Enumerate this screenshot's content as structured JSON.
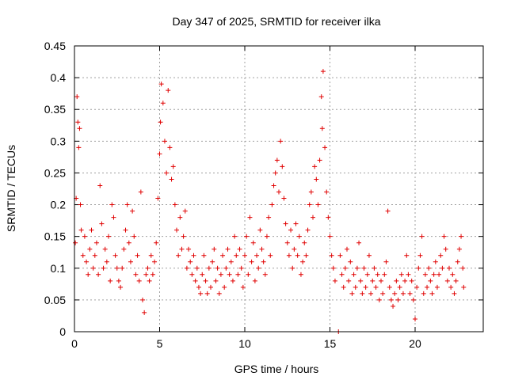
{
  "chart_data": {
    "type": "scatter",
    "title": "Day 347 of 2025, SRMTID for receiver ilka",
    "xlabel": "GPS time / hours",
    "ylabel": "SRMTID / TECUs",
    "xlim": [
      0,
      24
    ],
    "ylim": [
      0,
      0.45
    ],
    "xticks": [
      0,
      5,
      10,
      15,
      20
    ],
    "xtick_labels": [
      "0",
      "5",
      "10",
      "15",
      "20"
    ],
    "yticks": [
      0,
      0.05,
      0.1,
      0.15,
      0.2,
      0.25,
      0.3,
      0.35,
      0.4,
      0.45
    ],
    "ytick_labels": [
      "0",
      "0.05",
      "0.1",
      "0.15",
      "0.2",
      "0.25",
      "0.3",
      "0.35",
      "0.4",
      "0.45"
    ],
    "grid": true,
    "marker": "+",
    "series": [
      {
        "name": "SRMTID",
        "color": "#e00000",
        "points": [
          [
            0.05,
            0.14
          ],
          [
            0.1,
            0.21
          ],
          [
            0.15,
            0.37
          ],
          [
            0.2,
            0.33
          ],
          [
            0.25,
            0.29
          ],
          [
            0.3,
            0.32
          ],
          [
            0.35,
            0.2
          ],
          [
            0.4,
            0.16
          ],
          [
            0.5,
            0.12
          ],
          [
            0.6,
            0.15
          ],
          [
            0.7,
            0.11
          ],
          [
            0.8,
            0.09
          ],
          [
            0.9,
            0.13
          ],
          [
            1.0,
            0.16
          ],
          [
            1.1,
            0.1
          ],
          [
            1.2,
            0.12
          ],
          [
            1.3,
            0.14
          ],
          [
            1.4,
            0.09
          ],
          [
            1.5,
            0.23
          ],
          [
            1.6,
            0.17
          ],
          [
            1.7,
            0.1
          ],
          [
            1.8,
            0.13
          ],
          [
            1.9,
            0.11
          ],
          [
            2.0,
            0.15
          ],
          [
            2.1,
            0.08
          ],
          [
            2.2,
            0.2
          ],
          [
            2.3,
            0.18
          ],
          [
            2.4,
            0.12
          ],
          [
            2.5,
            0.1
          ],
          [
            2.6,
            0.08
          ],
          [
            2.7,
            0.07
          ],
          [
            2.8,
            0.1
          ],
          [
            2.9,
            0.13
          ],
          [
            3.0,
            0.16
          ],
          [
            3.1,
            0.2
          ],
          [
            3.2,
            0.14
          ],
          [
            3.3,
            0.11
          ],
          [
            3.4,
            0.19
          ],
          [
            3.5,
            0.15
          ],
          [
            3.6,
            0.09
          ],
          [
            3.7,
            0.12
          ],
          [
            3.8,
            0.08
          ],
          [
            3.9,
            0.22
          ],
          [
            4.0,
            0.05
          ],
          [
            4.1,
            0.03
          ],
          [
            4.2,
            0.09
          ],
          [
            4.3,
            0.1
          ],
          [
            4.4,
            0.08
          ],
          [
            4.5,
            0.12
          ],
          [
            4.6,
            0.09
          ],
          [
            4.7,
            0.11
          ],
          [
            4.8,
            0.14
          ],
          [
            4.9,
            0.21
          ],
          [
            5.0,
            0.28
          ],
          [
            5.05,
            0.33
          ],
          [
            5.1,
            0.39
          ],
          [
            5.2,
            0.36
          ],
          [
            5.3,
            0.3
          ],
          [
            5.4,
            0.25
          ],
          [
            5.5,
            0.38
          ],
          [
            5.6,
            0.29
          ],
          [
            5.7,
            0.24
          ],
          [
            5.8,
            0.26
          ],
          [
            5.9,
            0.2
          ],
          [
            6.0,
            0.16
          ],
          [
            6.1,
            0.12
          ],
          [
            6.2,
            0.18
          ],
          [
            6.3,
            0.13
          ],
          [
            6.4,
            0.15
          ],
          [
            6.5,
            0.19
          ],
          [
            6.6,
            0.1
          ],
          [
            6.7,
            0.13
          ],
          [
            6.8,
            0.11
          ],
          [
            6.9,
            0.09
          ],
          [
            7.0,
            0.12
          ],
          [
            7.1,
            0.08
          ],
          [
            7.2,
            0.1
          ],
          [
            7.3,
            0.07
          ],
          [
            7.4,
            0.06
          ],
          [
            7.5,
            0.09
          ],
          [
            7.6,
            0.12
          ],
          [
            7.7,
            0.08
          ],
          [
            7.8,
            0.06
          ],
          [
            7.9,
            0.1
          ],
          [
            8.0,
            0.07
          ],
          [
            8.1,
            0.11
          ],
          [
            8.2,
            0.13
          ],
          [
            8.3,
            0.08
          ],
          [
            8.4,
            0.1
          ],
          [
            8.5,
            0.06
          ],
          [
            8.6,
            0.09
          ],
          [
            8.7,
            0.12
          ],
          [
            8.8,
            0.07
          ],
          [
            8.9,
            0.1
          ],
          [
            9.0,
            0.13
          ],
          [
            9.1,
            0.09
          ],
          [
            9.2,
            0.11
          ],
          [
            9.3,
            0.08
          ],
          [
            9.4,
            0.15
          ],
          [
            9.5,
            0.12
          ],
          [
            9.6,
            0.09
          ],
          [
            9.7,
            0.13
          ],
          [
            9.8,
            0.1
          ],
          [
            9.9,
            0.07
          ],
          [
            10.0,
            0.12
          ],
          [
            10.1,
            0.15
          ],
          [
            10.2,
            0.09
          ],
          [
            10.3,
            0.18
          ],
          [
            10.4,
            0.11
          ],
          [
            10.5,
            0.14
          ],
          [
            10.6,
            0.08
          ],
          [
            10.7,
            0.12
          ],
          [
            10.8,
            0.1
          ],
          [
            10.9,
            0.16
          ],
          [
            11.0,
            0.13
          ],
          [
            11.1,
            0.11
          ],
          [
            11.2,
            0.09
          ],
          [
            11.3,
            0.15
          ],
          [
            11.4,
            0.18
          ],
          [
            11.5,
            0.12
          ],
          [
            11.6,
            0.2
          ],
          [
            11.7,
            0.23
          ],
          [
            11.8,
            0.25
          ],
          [
            11.9,
            0.27
          ],
          [
            12.0,
            0.22
          ],
          [
            12.1,
            0.3
          ],
          [
            12.2,
            0.26
          ],
          [
            12.3,
            0.21
          ],
          [
            12.4,
            0.17
          ],
          [
            12.5,
            0.14
          ],
          [
            12.6,
            0.12
          ],
          [
            12.7,
            0.16
          ],
          [
            12.8,
            0.1
          ],
          [
            12.9,
            0.13
          ],
          [
            13.0,
            0.17
          ],
          [
            13.1,
            0.12
          ],
          [
            13.2,
            0.15
          ],
          [
            13.3,
            0.09
          ],
          [
            13.4,
            0.11
          ],
          [
            13.5,
            0.14
          ],
          [
            13.6,
            0.12
          ],
          [
            13.7,
            0.16
          ],
          [
            13.8,
            0.2
          ],
          [
            13.9,
            0.22
          ],
          [
            14.0,
            0.18
          ],
          [
            14.1,
            0.26
          ],
          [
            14.2,
            0.24
          ],
          [
            14.3,
            0.2
          ],
          [
            14.4,
            0.27
          ],
          [
            14.5,
            0.37
          ],
          [
            14.55,
            0.32
          ],
          [
            14.6,
            0.41
          ],
          [
            14.7,
            0.29
          ],
          [
            14.8,
            0.22
          ],
          [
            14.9,
            0.18
          ],
          [
            15.0,
            0.15
          ],
          [
            15.1,
            0.12
          ],
          [
            15.2,
            0.1
          ],
          [
            15.3,
            0.08
          ],
          [
            15.5,
            0.0
          ],
          [
            15.6,
            0.12
          ],
          [
            15.7,
            0.09
          ],
          [
            15.8,
            0.07
          ],
          [
            15.9,
            0.1
          ],
          [
            16.0,
            0.13
          ],
          [
            16.1,
            0.08
          ],
          [
            16.2,
            0.11
          ],
          [
            16.3,
            0.06
          ],
          [
            16.4,
            0.09
          ],
          [
            16.5,
            0.07
          ],
          [
            16.6,
            0.1
          ],
          [
            16.7,
            0.14
          ],
          [
            16.8,
            0.08
          ],
          [
            16.9,
            0.06
          ],
          [
            17.0,
            0.1
          ],
          [
            17.1,
            0.07
          ],
          [
            17.2,
            0.09
          ],
          [
            17.3,
            0.12
          ],
          [
            17.4,
            0.06
          ],
          [
            17.5,
            0.08
          ],
          [
            17.6,
            0.1
          ],
          [
            17.7,
            0.07
          ],
          [
            17.8,
            0.09
          ],
          [
            17.9,
            0.05
          ],
          [
            18.0,
            0.08
          ],
          [
            18.1,
            0.06
          ],
          [
            18.2,
            0.09
          ],
          [
            18.3,
            0.11
          ],
          [
            18.4,
            0.19
          ],
          [
            18.5,
            0.07
          ],
          [
            18.6,
            0.05
          ],
          [
            18.7,
            0.04
          ],
          [
            18.8,
            0.06
          ],
          [
            18.9,
            0.08
          ],
          [
            19.0,
            0.05
          ],
          [
            19.1,
            0.07
          ],
          [
            19.2,
            0.09
          ],
          [
            19.3,
            0.06
          ],
          [
            19.4,
            0.08
          ],
          [
            19.5,
            0.12
          ],
          [
            19.6,
            0.09
          ],
          [
            19.7,
            0.06
          ],
          [
            19.8,
            0.08
          ],
          [
            19.9,
            0.05
          ],
          [
            20.0,
            0.02
          ],
          [
            20.1,
            0.07
          ],
          [
            20.2,
            0.1
          ],
          [
            20.3,
            0.12
          ],
          [
            20.4,
            0.15
          ],
          [
            20.5,
            0.06
          ],
          [
            20.6,
            0.09
          ],
          [
            20.7,
            0.07
          ],
          [
            20.8,
            0.1
          ],
          [
            20.9,
            0.08
          ],
          [
            21.0,
            0.06
          ],
          [
            21.1,
            0.09
          ],
          [
            21.2,
            0.11
          ],
          [
            21.3,
            0.07
          ],
          [
            21.4,
            0.09
          ],
          [
            21.5,
            0.12
          ],
          [
            21.6,
            0.1
          ],
          [
            21.7,
            0.15
          ],
          [
            21.8,
            0.13
          ],
          [
            21.9,
            0.08
          ],
          [
            22.0,
            0.1
          ],
          [
            22.1,
            0.07
          ],
          [
            22.2,
            0.09
          ],
          [
            22.3,
            0.06
          ],
          [
            22.4,
            0.08
          ],
          [
            22.5,
            0.11
          ],
          [
            22.6,
            0.13
          ],
          [
            22.7,
            0.15
          ],
          [
            22.8,
            0.1
          ],
          [
            22.85,
            0.07
          ]
        ]
      }
    ]
  }
}
